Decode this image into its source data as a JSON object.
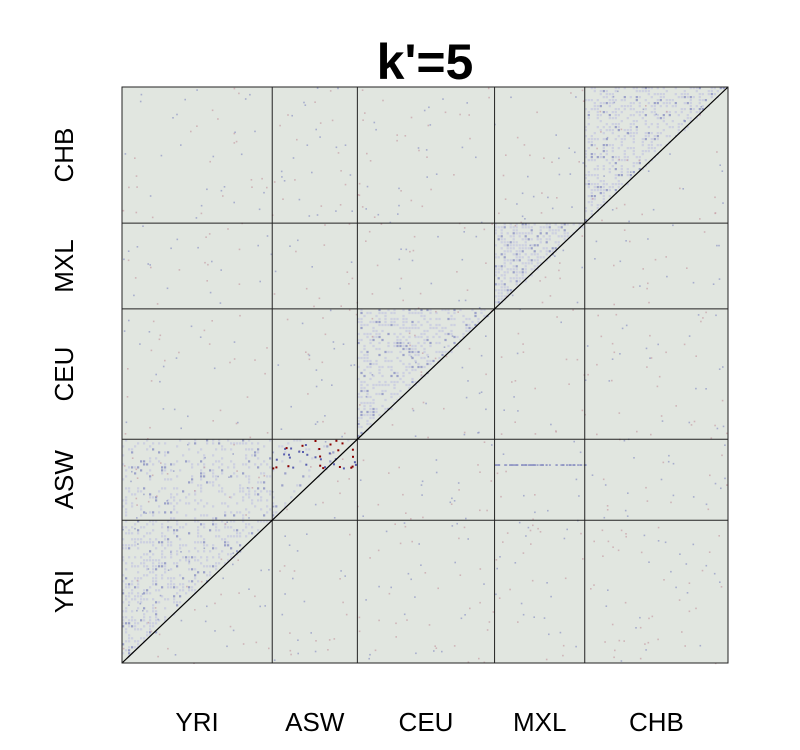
{
  "chart_data": {
    "type": "heatmap",
    "title": "k'=5",
    "categories": [
      "YRI",
      "ASW",
      "CEU",
      "MXL",
      "CHB"
    ],
    "category_fraction": [
      0.2479,
      0.1405,
      0.2264,
      0.1488,
      0.2364
    ],
    "grid": true,
    "diagonal_line": true,
    "colors": {
      "background": "#e1e6e0",
      "cluster": "#c9cbe0",
      "dot_blue": "#8f95c4",
      "dot_red": "#c8a0a6",
      "strong_blue": "#5a5fae",
      "strong_red": "#8b0000",
      "grid_line": "#222222"
    },
    "highlight_blocks": [
      {
        "row": "YRI",
        "col": "YRI",
        "triangle": "upper-left",
        "intensity": 0.35
      },
      {
        "row": "CEU",
        "col": "CEU",
        "triangle": "upper-left",
        "intensity": 0.4
      },
      {
        "row": "MXL",
        "col": "MXL",
        "triangle": "upper-left",
        "intensity": 0.55
      },
      {
        "row": "CHB",
        "col": "CHB",
        "triangle": "upper-left",
        "intensity": 0.4
      },
      {
        "row": "ASW",
        "col": "YRI",
        "triangle": "full",
        "intensity": 0.22
      },
      {
        "row": "ASW",
        "col": "ASW",
        "triangle": "upper-left",
        "intensity": 0.1
      }
    ]
  }
}
